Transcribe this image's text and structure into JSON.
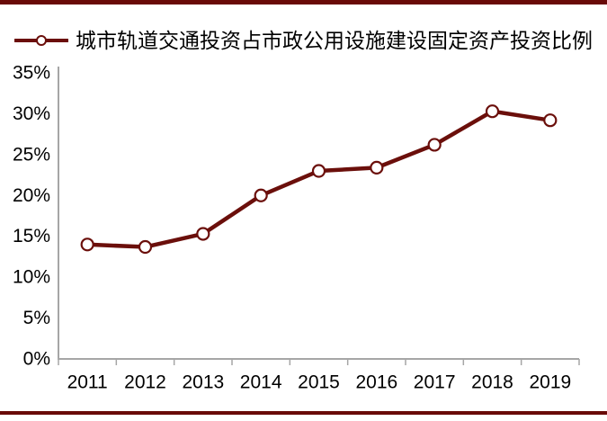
{
  "colors": {
    "accent": "#6b0f0b",
    "border": "#690a08",
    "axis": "#a6a6a6",
    "text": "#000000",
    "marker_fill": "#ffffff",
    "background": "#ffffff"
  },
  "legend": {
    "marker": "open-circle-on-line"
  },
  "chart_data": {
    "type": "line",
    "title": "",
    "categories": [
      "2011",
      "2012",
      "2013",
      "2014",
      "2015",
      "2016",
      "2017",
      "2018",
      "2019"
    ],
    "series": [
      {
        "name": "城市轨道交通投资占市政公用设施建设固定资产投资比例",
        "values": [
          14.0,
          13.7,
          15.3,
          20.0,
          23.0,
          23.4,
          26.2,
          30.3,
          29.2
        ]
      }
    ],
    "unit": "%",
    "ylim": [
      0,
      35
    ],
    "ytick_step": 5,
    "ytick_labels": [
      "0%",
      "5%",
      "10%",
      "15%",
      "20%",
      "25%",
      "30%",
      "35%"
    ],
    "xlabel": "",
    "ylabel": "",
    "grid": false,
    "legend_position": "top",
    "marker": "circle-open"
  }
}
